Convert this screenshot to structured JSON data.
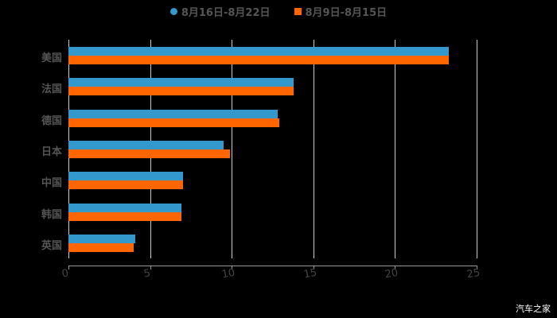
{
  "chart_data": {
    "type": "bar",
    "orientation": "horizontal",
    "title": "",
    "xlabel": "",
    "ylabel": "",
    "xlim": [
      0,
      25
    ],
    "x_ticks": [
      "0",
      "5",
      "10",
      "15",
      "20",
      "25"
    ],
    "grid": true,
    "legend_position": "top",
    "categories": [
      "美国",
      "法国",
      "德国",
      "日本",
      "中国",
      "韩国",
      "英国"
    ],
    "series": [
      {
        "name": "8月16日-8月22日",
        "color": "#3399cc",
        "values": [
          23.3,
          13.8,
          12.8,
          9.5,
          7.0,
          6.9,
          4.1
        ]
      },
      {
        "name": "8月9日-8月15日",
        "color": "#ff6600",
        "values": [
          23.3,
          13.8,
          12.9,
          9.9,
          7.0,
          6.9,
          4.0
        ]
      }
    ]
  },
  "legend": {
    "series1": "8月16日-8月22日",
    "series2": "8月9日-8月15日"
  },
  "watermark": "汽车之家"
}
